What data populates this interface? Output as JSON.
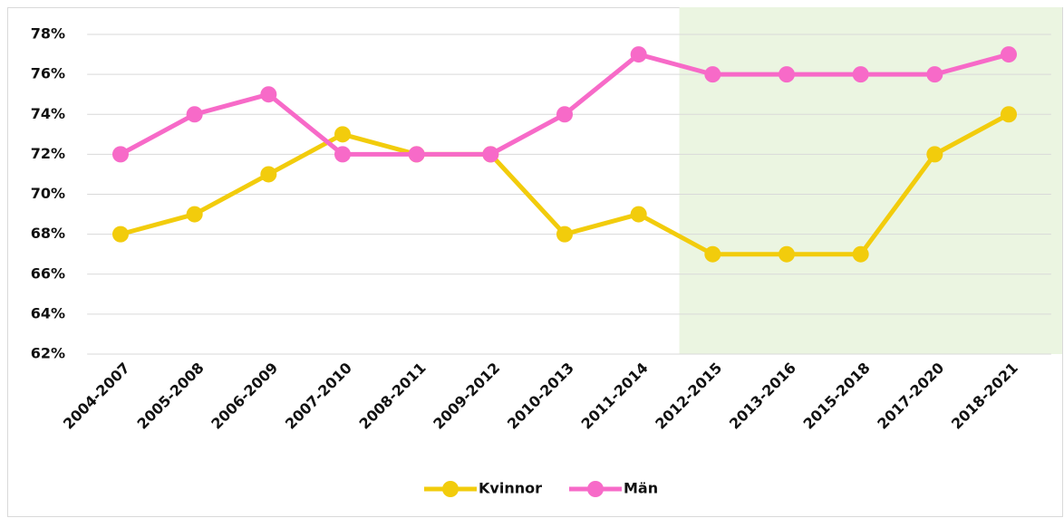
{
  "chart_data": {
    "type": "line",
    "categories": [
      "2004-2007",
      "2005-2008",
      "2006-2009",
      "2007-2010",
      "2008-2011",
      "2009-2012",
      "2010-2013",
      "2011-2014",
      "2012-2015",
      "2013-2016",
      "2015-2018",
      "2017-2020",
      "2018-2021"
    ],
    "series": [
      {
        "name": "Kvinnor",
        "color": "#f2cc0c",
        "values": [
          68,
          69,
          71,
          73,
          72,
          72,
          68,
          69,
          67,
          67,
          67,
          72,
          74
        ]
      },
      {
        "name": "Män",
        "color": "#f76ac8",
        "values": [
          72,
          74,
          75,
          72,
          72,
          72,
          74,
          77,
          76,
          76,
          76,
          76,
          77
        ]
      }
    ],
    "ylim": [
      62,
      78
    ],
    "yticks": [
      {
        "value": 62,
        "label": "62%"
      },
      {
        "value": 64,
        "label": "64%"
      },
      {
        "value": 66,
        "label": "66%"
      },
      {
        "value": 68,
        "label": "68%"
      },
      {
        "value": 70,
        "label": "70%"
      },
      {
        "value": 72,
        "label": "72%"
      },
      {
        "value": 74,
        "label": "74%"
      },
      {
        "value": 76,
        "label": "76%"
      },
      {
        "value": 78,
        "label": "78%"
      }
    ],
    "grid": true,
    "legend": "bottom",
    "highlight": {
      "start": "2012-2015",
      "end": "2018-2021",
      "color": "#ebf5e1"
    }
  }
}
